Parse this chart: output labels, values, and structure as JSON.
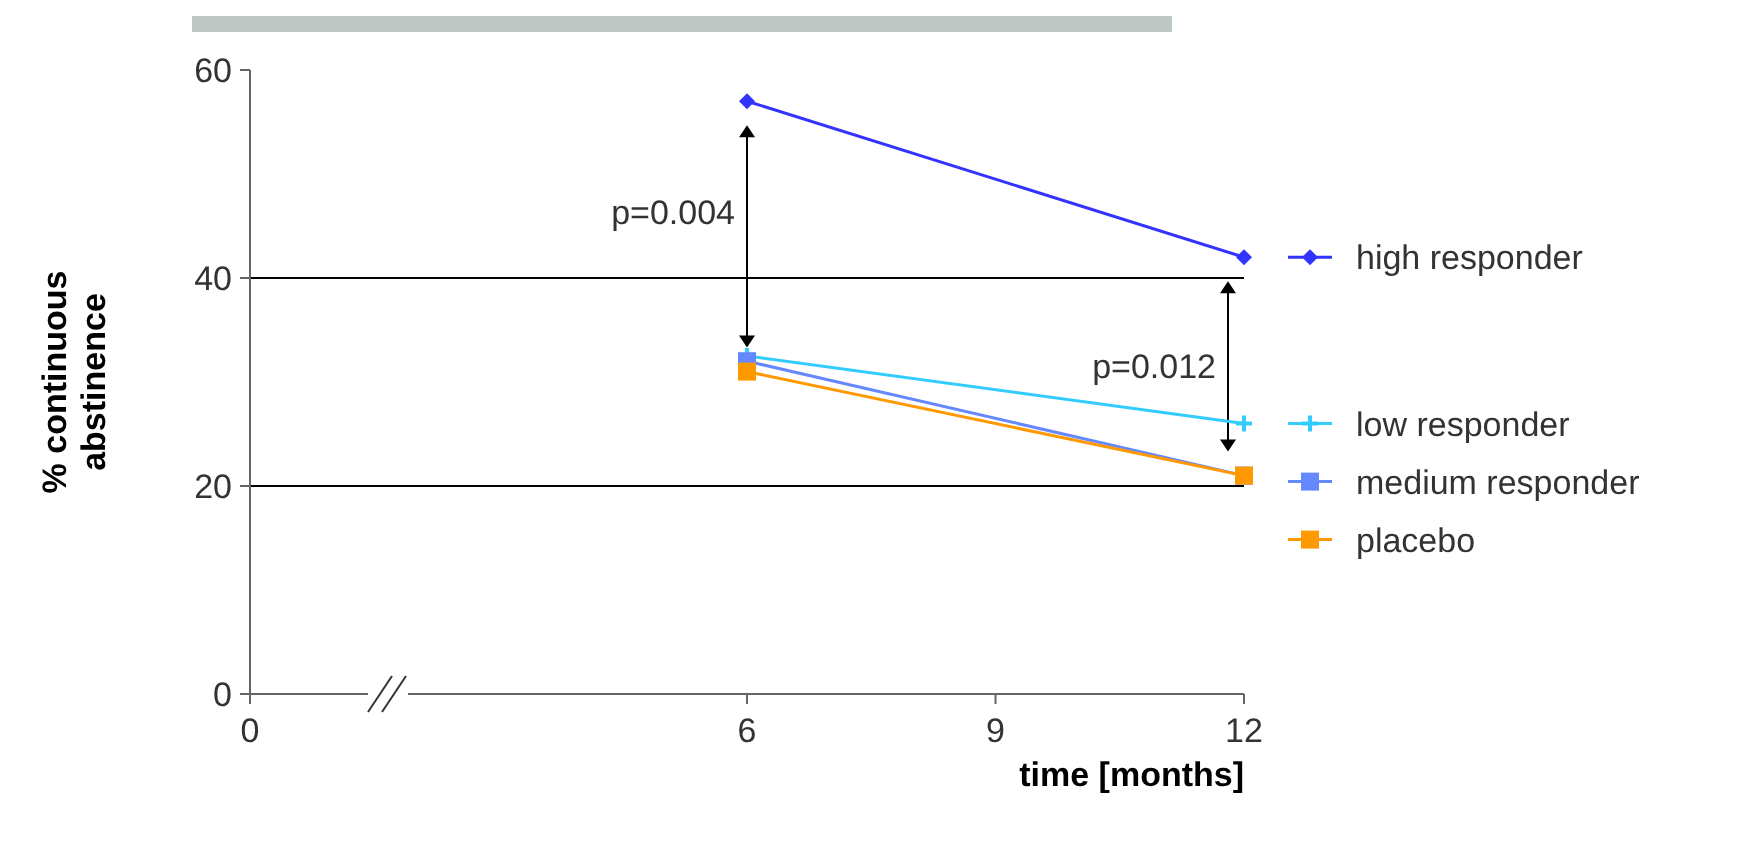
{
  "chart_data": {
    "type": "line",
    "xlabel": "time [months]",
    "ylabel": "% continuous abstinence",
    "xlim": [
      0,
      12
    ],
    "xticks": [
      0,
      6,
      9,
      12
    ],
    "ylim": [
      0,
      60
    ],
    "yticks": [
      0,
      20,
      40,
      60
    ],
    "grid": "y",
    "legend": "right",
    "x": [
      6,
      12
    ],
    "series": [
      {
        "name": "high responder",
        "color": "#3333ff",
        "marker": "diamond",
        "values": [
          57,
          42
        ]
      },
      {
        "name": "low responder",
        "color": "#33ccff",
        "marker": "cross",
        "values": [
          32.5,
          26
        ]
      },
      {
        "name": "medium responder",
        "color": "#6688ff",
        "marker": "square",
        "values": [
          32,
          21
        ]
      },
      {
        "name": "placebo",
        "color": "#ff9900",
        "marker": "square",
        "values": [
          31,
          21
        ]
      }
    ],
    "annotations": [
      "p=0.004",
      "p=0.012"
    ]
  }
}
